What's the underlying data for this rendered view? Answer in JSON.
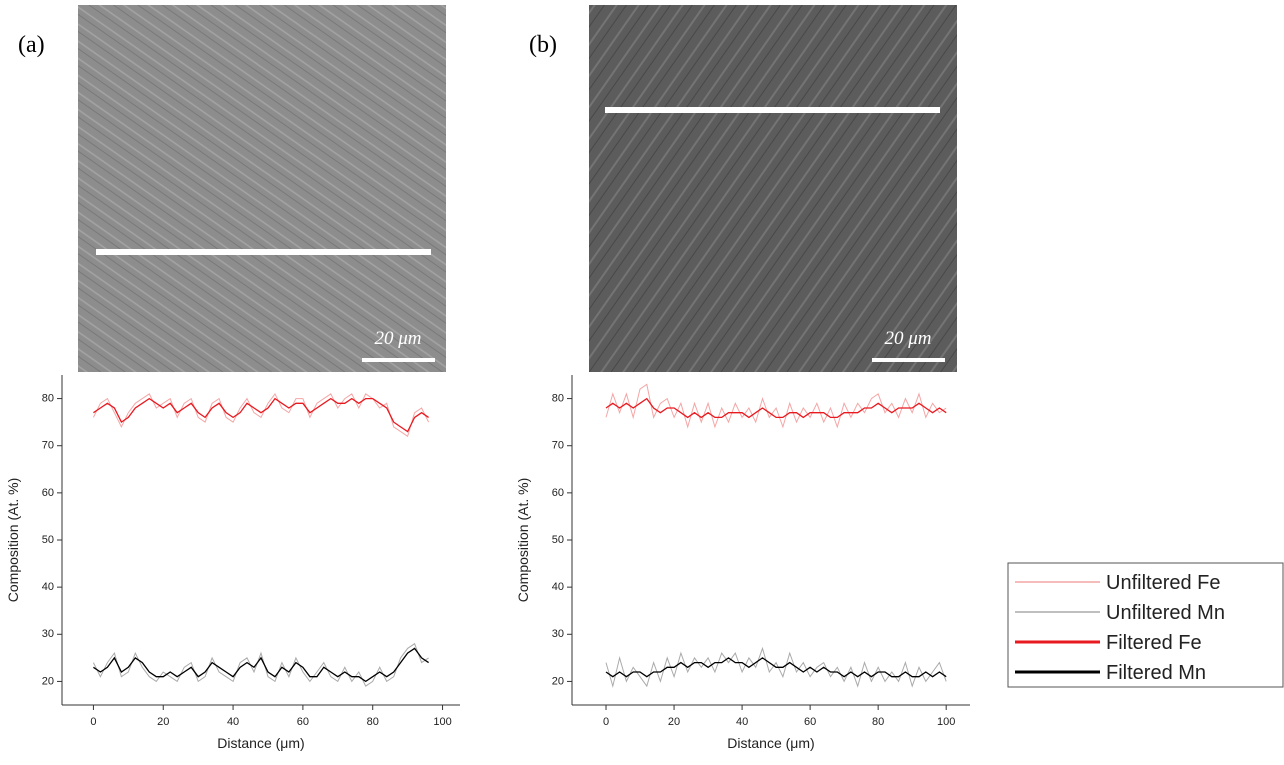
{
  "panels": [
    {
      "label": "(a)",
      "scale_bar": "20 μm"
    },
    {
      "label": "(b)",
      "scale_bar": "20 μm"
    }
  ],
  "chart_data": [
    {
      "type": "line",
      "x_label": "Distance (μm)",
      "y_label": "Composition (At. %)",
      "x": [
        0,
        2,
        4,
        6,
        8,
        10,
        12,
        14,
        16,
        18,
        20,
        22,
        24,
        26,
        28,
        30,
        32,
        34,
        36,
        38,
        40,
        42,
        44,
        46,
        48,
        50,
        52,
        54,
        56,
        58,
        60,
        62,
        64,
        66,
        68,
        70,
        72,
        74,
        76,
        78,
        80,
        82,
        84,
        86,
        88,
        90,
        92,
        94,
        96
      ],
      "xlim": [
        -9,
        105
      ],
      "xticks": [
        0,
        20,
        40,
        60,
        80,
        100
      ],
      "ylim": [
        15,
        85
      ],
      "yticks": [
        20,
        30,
        40,
        50,
        60,
        70,
        80
      ],
      "series": [
        {
          "name": "Unfiltered Fe",
          "color": "#f4a6a6",
          "values": [
            76,
            79,
            80,
            77,
            74,
            77,
            79,
            80,
            81,
            78,
            79,
            80,
            76,
            79,
            80,
            76,
            75,
            79,
            80,
            76,
            75,
            78,
            80,
            77,
            76,
            79,
            81,
            78,
            77,
            80,
            80,
            76,
            79,
            80,
            81,
            78,
            80,
            81,
            78,
            81,
            80,
            78,
            79,
            74,
            73,
            72,
            77,
            78,
            75
          ]
        },
        {
          "name": "Unfiltered Mn",
          "color": "#aaaaaa",
          "values": [
            24,
            21,
            24,
            26,
            21,
            22,
            26,
            23,
            21,
            20,
            22,
            21,
            20,
            23,
            24,
            20,
            21,
            25,
            22,
            21,
            20,
            24,
            25,
            22,
            26,
            21,
            20,
            24,
            21,
            25,
            22,
            20,
            22,
            24,
            21,
            20,
            23,
            20,
            22,
            19,
            20,
            23,
            20,
            21,
            25,
            27,
            28,
            24,
            25
          ]
        },
        {
          "name": "Filtered Fe",
          "color": "#e8191f",
          "values": [
            77,
            78,
            79,
            78,
            75,
            76,
            78,
            79,
            80,
            79,
            78,
            79,
            77,
            78,
            79,
            77,
            76,
            78,
            79,
            77,
            76,
            77,
            79,
            78,
            77,
            78,
            80,
            79,
            78,
            79,
            79,
            77,
            78,
            79,
            80,
            79,
            79,
            80,
            79,
            80,
            80,
            79,
            78,
            75,
            74,
            73,
            76,
            77,
            76
          ]
        },
        {
          "name": "Filtered Mn",
          "color": "#000000",
          "values": [
            23,
            22,
            23,
            25,
            22,
            23,
            25,
            24,
            22,
            21,
            21,
            22,
            21,
            22,
            23,
            21,
            22,
            24,
            23,
            22,
            21,
            23,
            24,
            23,
            25,
            22,
            21,
            23,
            22,
            24,
            23,
            21,
            21,
            23,
            22,
            21,
            22,
            21,
            21,
            20,
            21,
            22,
            21,
            22,
            24,
            26,
            27,
            25,
            24
          ]
        }
      ]
    },
    {
      "type": "line",
      "x_label": "Distance (μm)",
      "y_label": "Composition (At. %)",
      "x": [
        0,
        2,
        4,
        6,
        8,
        10,
        12,
        14,
        16,
        18,
        20,
        22,
        24,
        26,
        28,
        30,
        32,
        34,
        36,
        38,
        40,
        42,
        44,
        46,
        48,
        50,
        52,
        54,
        56,
        58,
        60,
        62,
        64,
        66,
        68,
        70,
        72,
        74,
        76,
        78,
        80,
        82,
        84,
        86,
        88,
        90,
        92,
        94,
        96,
        98,
        100
      ],
      "xlim": [
        -10,
        107
      ],
      "xticks": [
        0,
        20,
        40,
        60,
        80,
        100
      ],
      "ylim": [
        15,
        85
      ],
      "yticks": [
        20,
        30,
        40,
        50,
        60,
        70,
        80
      ],
      "series": [
        {
          "color": "#f4a6a6",
          "values": [
            76,
            81,
            77,
            81,
            76,
            82,
            83,
            76,
            79,
            80,
            76,
            79,
            74,
            79,
            75,
            79,
            74,
            78,
            75,
            79,
            76,
            78,
            75,
            80,
            76,
            78,
            74,
            79,
            75,
            78,
            76,
            79,
            75,
            78,
            74,
            79,
            76,
            79,
            77,
            80,
            81,
            77,
            79,
            76,
            80,
            77,
            81,
            76,
            79,
            77,
            78
          ]
        },
        {
          "color": "#aaaaaa",
          "values": [
            24,
            19,
            25,
            20,
            23,
            21,
            19,
            24,
            20,
            25,
            21,
            26,
            22,
            25,
            23,
            25,
            22,
            26,
            24,
            26,
            22,
            25,
            23,
            27,
            22,
            24,
            21,
            26,
            22,
            24,
            21,
            23,
            24,
            21,
            23,
            20,
            23,
            19,
            24,
            20,
            23,
            20,
            22,
            20,
            24,
            19,
            23,
            20,
            22,
            24,
            20
          ]
        },
        {
          "color": "#e8191f",
          "values": [
            78,
            79,
            78,
            79,
            78,
            79,
            80,
            78,
            77,
            78,
            78,
            77,
            76,
            77,
            76,
            77,
            76,
            76,
            77,
            77,
            77,
            76,
            77,
            78,
            77,
            76,
            76,
            77,
            77,
            76,
            77,
            77,
            77,
            76,
            76,
            77,
            77,
            77,
            78,
            78,
            79,
            78,
            77,
            78,
            78,
            78,
            79,
            78,
            77,
            78,
            77
          ]
        },
        {
          "color": "#000000",
          "values": [
            22,
            21,
            22,
            21,
            22,
            22,
            21,
            22,
            22,
            23,
            23,
            24,
            23,
            24,
            24,
            23,
            24,
            24,
            25,
            24,
            24,
            23,
            24,
            25,
            24,
            23,
            23,
            24,
            23,
            22,
            23,
            22,
            23,
            22,
            22,
            21,
            22,
            21,
            22,
            21,
            22,
            22,
            21,
            21,
            22,
            21,
            21,
            22,
            21,
            22,
            21
          ]
        }
      ]
    }
  ]
}
